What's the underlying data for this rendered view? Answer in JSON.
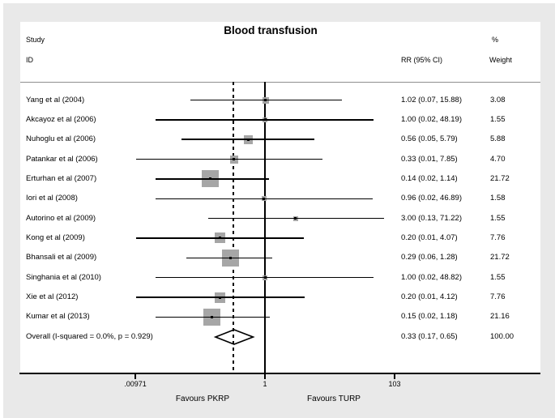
{
  "figure": {
    "title": "Blood transfusion",
    "col_headers": {
      "study_line1": "Study",
      "study_line2": "ID",
      "rr": "RR (95% CI)",
      "pct": "%",
      "weight": "Weight"
    },
    "favours_left": "Favours PKRP",
    "favours_right": "Favours TURP"
  },
  "chart_data": {
    "type": "scatter",
    "subtype": "forest-plot",
    "title": "Blood transfusion",
    "x_scale": "log",
    "x_ticks": [
      0.00971,
      1,
      103
    ],
    "x_tick_labels": [
      ".00971",
      "1",
      "103"
    ],
    "null_line_value": 1,
    "dashed_line_value": 0.33,
    "effect_measure": "RR (95% CI)",
    "studies": [
      {
        "label": "Yang et al (2004)",
        "rr": 1.02,
        "ci_low": 0.07,
        "ci_high": 15.88,
        "rr_text": "1.02 (0.07, 15.88)",
        "weight": 3.08,
        "weight_text": "3.08"
      },
      {
        "label": "Akcayoz et al (2006)",
        "rr": 1.0,
        "ci_low": 0.02,
        "ci_high": 48.19,
        "rr_text": "1.00 (0.02, 48.19)",
        "weight": 1.55,
        "weight_text": "1.55"
      },
      {
        "label": "Nuhoglu et al (2006)",
        "rr": 0.56,
        "ci_low": 0.05,
        "ci_high": 5.79,
        "rr_text": "0.56 (0.05, 5.79)",
        "weight": 5.88,
        "weight_text": "5.88"
      },
      {
        "label": "Patankar et al (2006)",
        "rr": 0.33,
        "ci_low": 0.01,
        "ci_high": 7.85,
        "rr_text": "0.33 (0.01, 7.85)",
        "weight": 4.7,
        "weight_text": "4.70"
      },
      {
        "label": "Erturhan et al (2007)",
        "rr": 0.14,
        "ci_low": 0.02,
        "ci_high": 1.14,
        "rr_text": "0.14 (0.02, 1.14)",
        "weight": 21.72,
        "weight_text": "21.72"
      },
      {
        "label": "Iori et al (2008)",
        "rr": 0.96,
        "ci_low": 0.02,
        "ci_high": 46.89,
        "rr_text": "0.96 (0.02, 46.89)",
        "weight": 1.58,
        "weight_text": "1.58"
      },
      {
        "label": "Autorino et al (2009)",
        "rr": 3.0,
        "ci_low": 0.13,
        "ci_high": 71.22,
        "rr_text": "3.00 (0.13, 71.22)",
        "weight": 1.55,
        "weight_text": "1.55"
      },
      {
        "label": "Kong et al (2009)",
        "rr": 0.2,
        "ci_low": 0.01,
        "ci_high": 4.07,
        "rr_text": "0.20 (0.01, 4.07)",
        "weight": 7.76,
        "weight_text": "7.76"
      },
      {
        "label": "Bhansali et al (2009)",
        "rr": 0.29,
        "ci_low": 0.06,
        "ci_high": 1.28,
        "rr_text": "0.29 (0.06, 1.28)",
        "weight": 21.72,
        "weight_text": "21.72"
      },
      {
        "label": "Singhania et al (2010)",
        "rr": 1.0,
        "ci_low": 0.02,
        "ci_high": 48.82,
        "rr_text": "1.00 (0.02, 48.82)",
        "weight": 1.55,
        "weight_text": "1.55"
      },
      {
        "label": "Xie et al (2012)",
        "rr": 0.2,
        "ci_low": 0.01,
        "ci_high": 4.12,
        "rr_text": "0.20 (0.01, 4.12)",
        "weight": 7.76,
        "weight_text": "7.76"
      },
      {
        "label": "Kumar et al (2013)",
        "rr": 0.15,
        "ci_low": 0.02,
        "ci_high": 1.18,
        "rr_text": "0.15 (0.02, 1.18)",
        "weight": 21.16,
        "weight_text": "21.16"
      }
    ],
    "overall": {
      "label": "Overall  (I-squared = 0.0%, p = 0.929)",
      "rr": 0.33,
      "ci_low": 0.17,
      "ci_high": 0.65,
      "rr_text": "0.33 (0.17, 0.65)",
      "weight_text": "100.00"
    }
  }
}
